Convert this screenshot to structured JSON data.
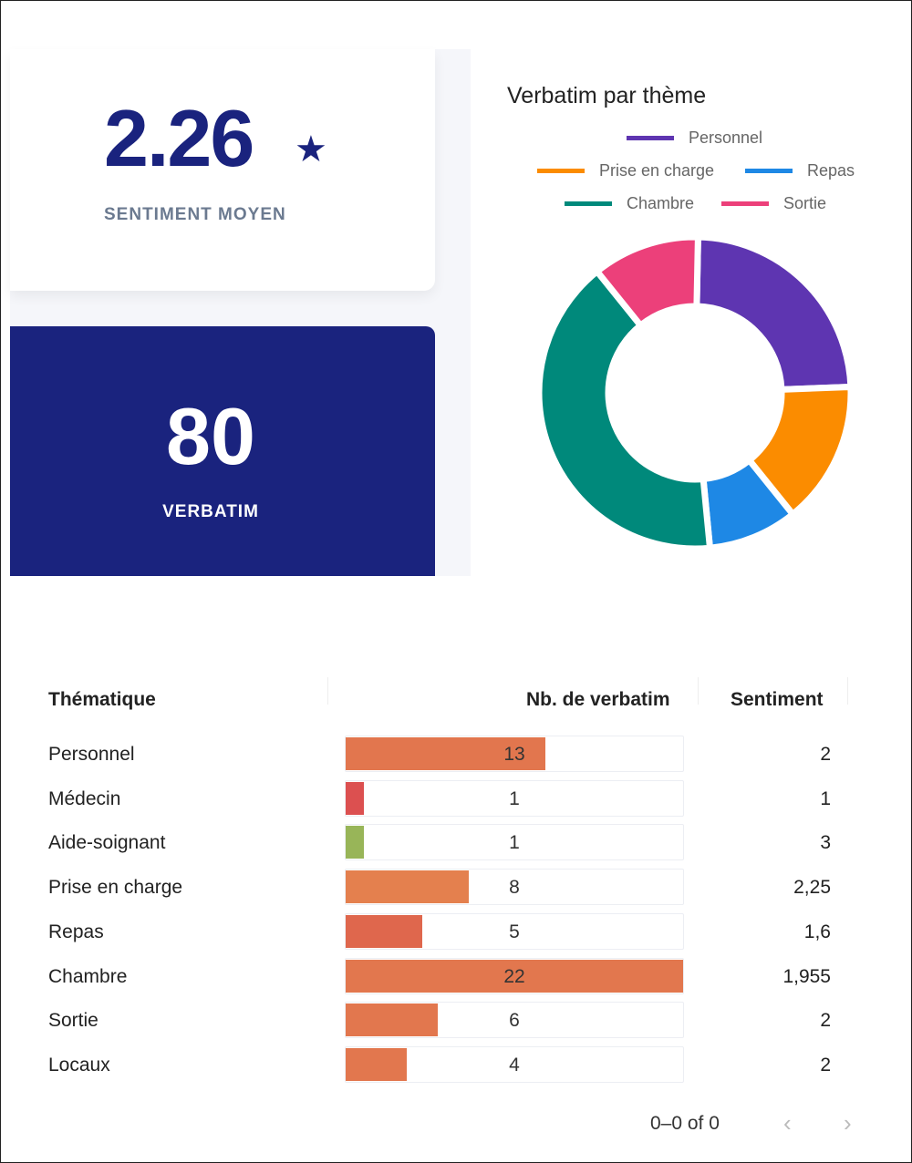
{
  "kpis": {
    "sentiment": {
      "value": "2.26",
      "icon": "star-icon",
      "label": "SENTIMENT MOYEN"
    },
    "verbatim": {
      "value": "80",
      "label": "VERBATIM"
    }
  },
  "chart_data": {
    "type": "pie",
    "title": "Verbatim par thème",
    "legend_position": "top",
    "categories": [
      "Personnel",
      "Prise en charge",
      "Repas",
      "Chambre",
      "Sortie"
    ],
    "values": [
      13,
      8,
      5,
      22,
      6
    ],
    "colors": [
      "#5e35b1",
      "#fb8c00",
      "#1e88e5",
      "#00897b",
      "#ec407a"
    ]
  },
  "table": {
    "headers": [
      "Thématique",
      "Nb. de verbatim",
      "Sentiment"
    ],
    "max": 22,
    "rows": [
      {
        "name": "Personnel",
        "count": 13,
        "sentiment": "2",
        "color": "#e2764e"
      },
      {
        "name": "Médecin",
        "count": 1,
        "sentiment": "1",
        "color": "#dc5050"
      },
      {
        "name": "Aide-soignant",
        "count": 1,
        "sentiment": "3",
        "color": "#98b558"
      },
      {
        "name": "Prise en charge",
        "count": 8,
        "sentiment": "2,25",
        "color": "#e4804e"
      },
      {
        "name": "Repas",
        "count": 5,
        "sentiment": "1,6",
        "color": "#df674d"
      },
      {
        "name": "Chambre",
        "count": 22,
        "sentiment": "1,955",
        "color": "#e2774e"
      },
      {
        "name": "Sortie",
        "count": 6,
        "sentiment": "2",
        "color": "#e2774e"
      },
      {
        "name": "Locaux",
        "count": 4,
        "sentiment": "2",
        "color": "#e2774e"
      }
    ]
  },
  "pagination": {
    "text": "0–0 of 0",
    "prev": "‹",
    "next": "›"
  }
}
